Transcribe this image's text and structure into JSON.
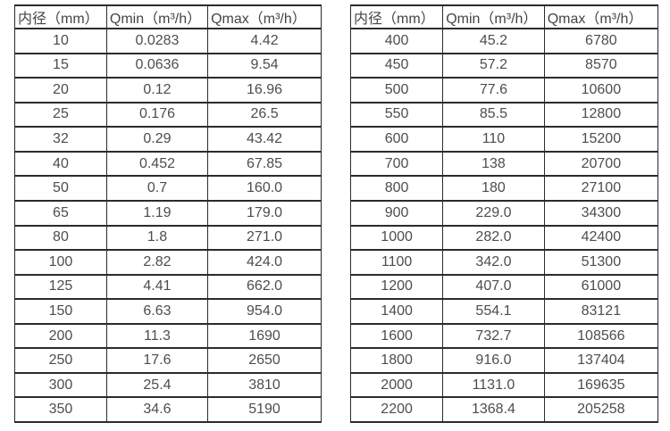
{
  "tables": [
    {
      "name": "flow-range-small-diameters",
      "headers": [
        "内径（mm）",
        "Qmin（m³/h）",
        "Qmax（m³/h）"
      ],
      "rows": [
        [
          "10",
          "0.0283",
          "4.42"
        ],
        [
          "15",
          "0.0636",
          "9.54"
        ],
        [
          "20",
          "0.12",
          "16.96"
        ],
        [
          "25",
          "0.176",
          "26.5"
        ],
        [
          "32",
          "0.29",
          "43.42"
        ],
        [
          "40",
          "0.452",
          "67.85"
        ],
        [
          "50",
          "0.7",
          "160.0"
        ],
        [
          "65",
          "1.19",
          "179.0"
        ],
        [
          "80",
          "1.8",
          "271.0"
        ],
        [
          "100",
          "2.82",
          "424.0"
        ],
        [
          "125",
          "4.41",
          "662.0"
        ],
        [
          "150",
          "6.63",
          "954.0"
        ],
        [
          "200",
          "11.3",
          "1690"
        ],
        [
          "250",
          "17.6",
          "2650"
        ],
        [
          "300",
          "25.4",
          "3810"
        ],
        [
          "350",
          "34.6",
          "5190"
        ]
      ]
    },
    {
      "name": "flow-range-large-diameters",
      "headers": [
        "内径（mm）",
        "Qmin（m³/h）",
        "Qmax（m³/h）"
      ],
      "rows": [
        [
          "400",
          "45.2",
          "6780"
        ],
        [
          "450",
          "57.2",
          "8570"
        ],
        [
          "500",
          "77.6",
          "10600"
        ],
        [
          "550",
          "85.5",
          "12800"
        ],
        [
          "600",
          "110",
          "15200"
        ],
        [
          "700",
          "138",
          "20700"
        ],
        [
          "800",
          "180",
          "27100"
        ],
        [
          "900",
          "229.0",
          "34300"
        ],
        [
          "1000",
          "282.0",
          "42400"
        ],
        [
          "1100",
          "342.0",
          "51300"
        ],
        [
          "1200",
          "407.0",
          "61000"
        ],
        [
          "1400",
          "554.1",
          "83121"
        ],
        [
          "1600",
          "732.7",
          "108566"
        ],
        [
          "1800",
          "916.0",
          "137404"
        ],
        [
          "2000",
          "1131.0",
          "169635"
        ],
        [
          "2200",
          "1368.4",
          "205258"
        ]
      ]
    }
  ],
  "colors": {
    "border": "#2b2b2b",
    "text": "#4d4d4d",
    "background": "#ffffff"
  }
}
